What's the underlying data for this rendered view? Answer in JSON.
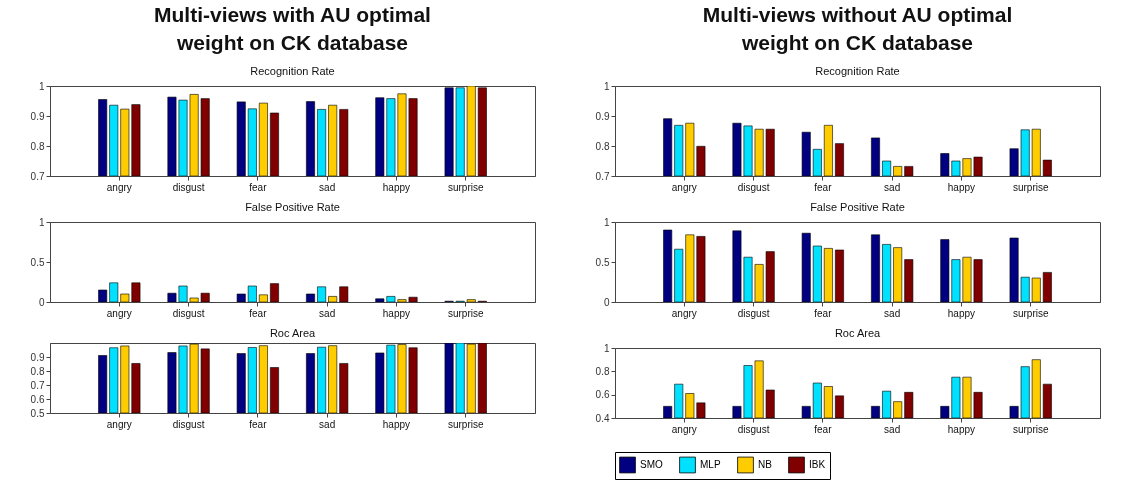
{
  "chart_data": [
    {
      "type": "bar",
      "title": "Multi-views with AU optimal weight on CK database",
      "subtitle": "Recognition Rate",
      "categories": [
        "angry",
        "disgust",
        "fear",
        "sad",
        "happy",
        "surprise"
      ],
      "ylim": [
        0.7,
        1
      ],
      "yticks": [
        0.7,
        0.8,
        0.9,
        1
      ],
      "grid": false,
      "series": [
        {
          "color": "#000080",
          "values": [
            0.955,
            0.963,
            0.947,
            0.948,
            0.961,
            0.994
          ]
        },
        {
          "color": "#00e1ff",
          "values": [
            0.936,
            0.953,
            0.924,
            0.922,
            0.958,
            0.994
          ]
        },
        {
          "color": "#ffcc00",
          "values": [
            0.923,
            0.972,
            0.943,
            0.936,
            0.974,
            1.0
          ]
        },
        {
          "color": "#800000",
          "values": [
            0.938,
            0.958,
            0.91,
            0.922,
            0.958,
            0.994
          ]
        }
      ]
    },
    {
      "type": "bar",
      "title": "Multi-views without AU optimal weight on CK database",
      "subtitle": "Recognition Rate",
      "categories": [
        "angry",
        "disgust",
        "fear",
        "sad",
        "happy",
        "surprise"
      ],
      "ylim": [
        0.7,
        1
      ],
      "yticks": [
        0.7,
        0.8,
        0.9,
        1
      ],
      "grid": false,
      "series": [
        {
          "color": "#000080",
          "values": [
            0.891,
            0.876,
            0.846,
            0.827,
            0.775,
            0.791
          ]
        },
        {
          "color": "#00e1ff",
          "values": [
            0.869,
            0.867,
            0.789,
            0.75,
            0.75,
            0.854
          ]
        },
        {
          "color": "#ffcc00",
          "values": [
            0.876,
            0.856,
            0.869,
            0.732,
            0.758,
            0.856
          ]
        },
        {
          "color": "#800000",
          "values": [
            0.799,
            0.856,
            0.808,
            0.732,
            0.763,
            0.753
          ]
        }
      ]
    },
    {
      "type": "bar",
      "title": "False Positive Rate",
      "categories": [
        "angry",
        "disgust",
        "fear",
        "sad",
        "happy",
        "surprise"
      ],
      "ylim": [
        0,
        1
      ],
      "yticks": [
        0,
        0.5,
        1
      ],
      "grid": false,
      "series": [
        {
          "color": "#000080",
          "values": [
            0.15,
            0.11,
            0.1,
            0.1,
            0.04,
            0.01
          ]
        },
        {
          "color": "#00e1ff",
          "values": [
            0.24,
            0.2,
            0.2,
            0.19,
            0.07,
            0.01
          ]
        },
        {
          "color": "#ffcc00",
          "values": [
            0.1,
            0.05,
            0.09,
            0.07,
            0.03,
            0.03
          ]
        },
        {
          "color": "#800000",
          "values": [
            0.24,
            0.11,
            0.23,
            0.19,
            0.06,
            0.01
          ]
        }
      ]
    },
    {
      "type": "bar",
      "title": "False Positive Rate",
      "categories": [
        "angry",
        "disgust",
        "fear",
        "sad",
        "happy",
        "surprise"
      ],
      "ylim": [
        0,
        1
      ],
      "yticks": [
        0,
        0.5,
        1
      ],
      "grid": false,
      "series": [
        {
          "color": "#000080",
          "values": [
            0.9,
            0.89,
            0.86,
            0.84,
            0.78,
            0.8
          ]
        },
        {
          "color": "#00e1ff",
          "values": [
            0.66,
            0.56,
            0.7,
            0.72,
            0.53,
            0.31
          ]
        },
        {
          "color": "#ffcc00",
          "values": [
            0.84,
            0.47,
            0.67,
            0.68,
            0.56,
            0.3
          ]
        },
        {
          "color": "#800000",
          "values": [
            0.82,
            0.63,
            0.65,
            0.53,
            0.53,
            0.37
          ]
        }
      ]
    },
    {
      "type": "bar",
      "title": "Roc Area",
      "categories": [
        "angry",
        "disgust",
        "fear",
        "sad",
        "happy",
        "surprise"
      ],
      "ylim": [
        0.5,
        1
      ],
      "yticks": [
        0.5,
        0.6,
        0.7,
        0.8,
        0.9
      ],
      "grid": false,
      "series": [
        {
          "color": "#000080",
          "values": [
            0.911,
            0.932,
            0.925,
            0.925,
            0.929,
            1.0
          ]
        },
        {
          "color": "#00e1ff",
          "values": [
            0.966,
            0.979,
            0.968,
            0.97,
            0.985,
            1.0
          ]
        },
        {
          "color": "#ffcc00",
          "values": [
            0.979,
            0.992,
            0.981,
            0.981,
            0.989,
            0.992
          ]
        },
        {
          "color": "#800000",
          "values": [
            0.854,
            0.958,
            0.825,
            0.854,
            0.966,
            1.0
          ]
        }
      ]
    },
    {
      "type": "bar",
      "title": "Roc Area",
      "categories": [
        "angry",
        "disgust",
        "fear",
        "sad",
        "happy",
        "surprise"
      ],
      "ylim": [
        0.4,
        1
      ],
      "yticks": [
        0.4,
        0.6,
        0.8,
        1
      ],
      "grid": false,
      "legend": "bottom",
      "series": [
        {
          "name": "SMO",
          "color": "#000080",
          "values": [
            0.5,
            0.5,
            0.5,
            0.5,
            0.5,
            0.5
          ]
        },
        {
          "name": "MLP",
          "color": "#00e1ff",
          "values": [
            0.69,
            0.85,
            0.7,
            0.63,
            0.75,
            0.84
          ]
        },
        {
          "name": "NB",
          "color": "#ffcc00",
          "values": [
            0.61,
            0.89,
            0.67,
            0.54,
            0.75,
            0.9
          ]
        },
        {
          "name": "IBK",
          "color": "#800000",
          "values": [
            0.53,
            0.64,
            0.59,
            0.62,
            0.62,
            0.69
          ]
        }
      ]
    }
  ]
}
